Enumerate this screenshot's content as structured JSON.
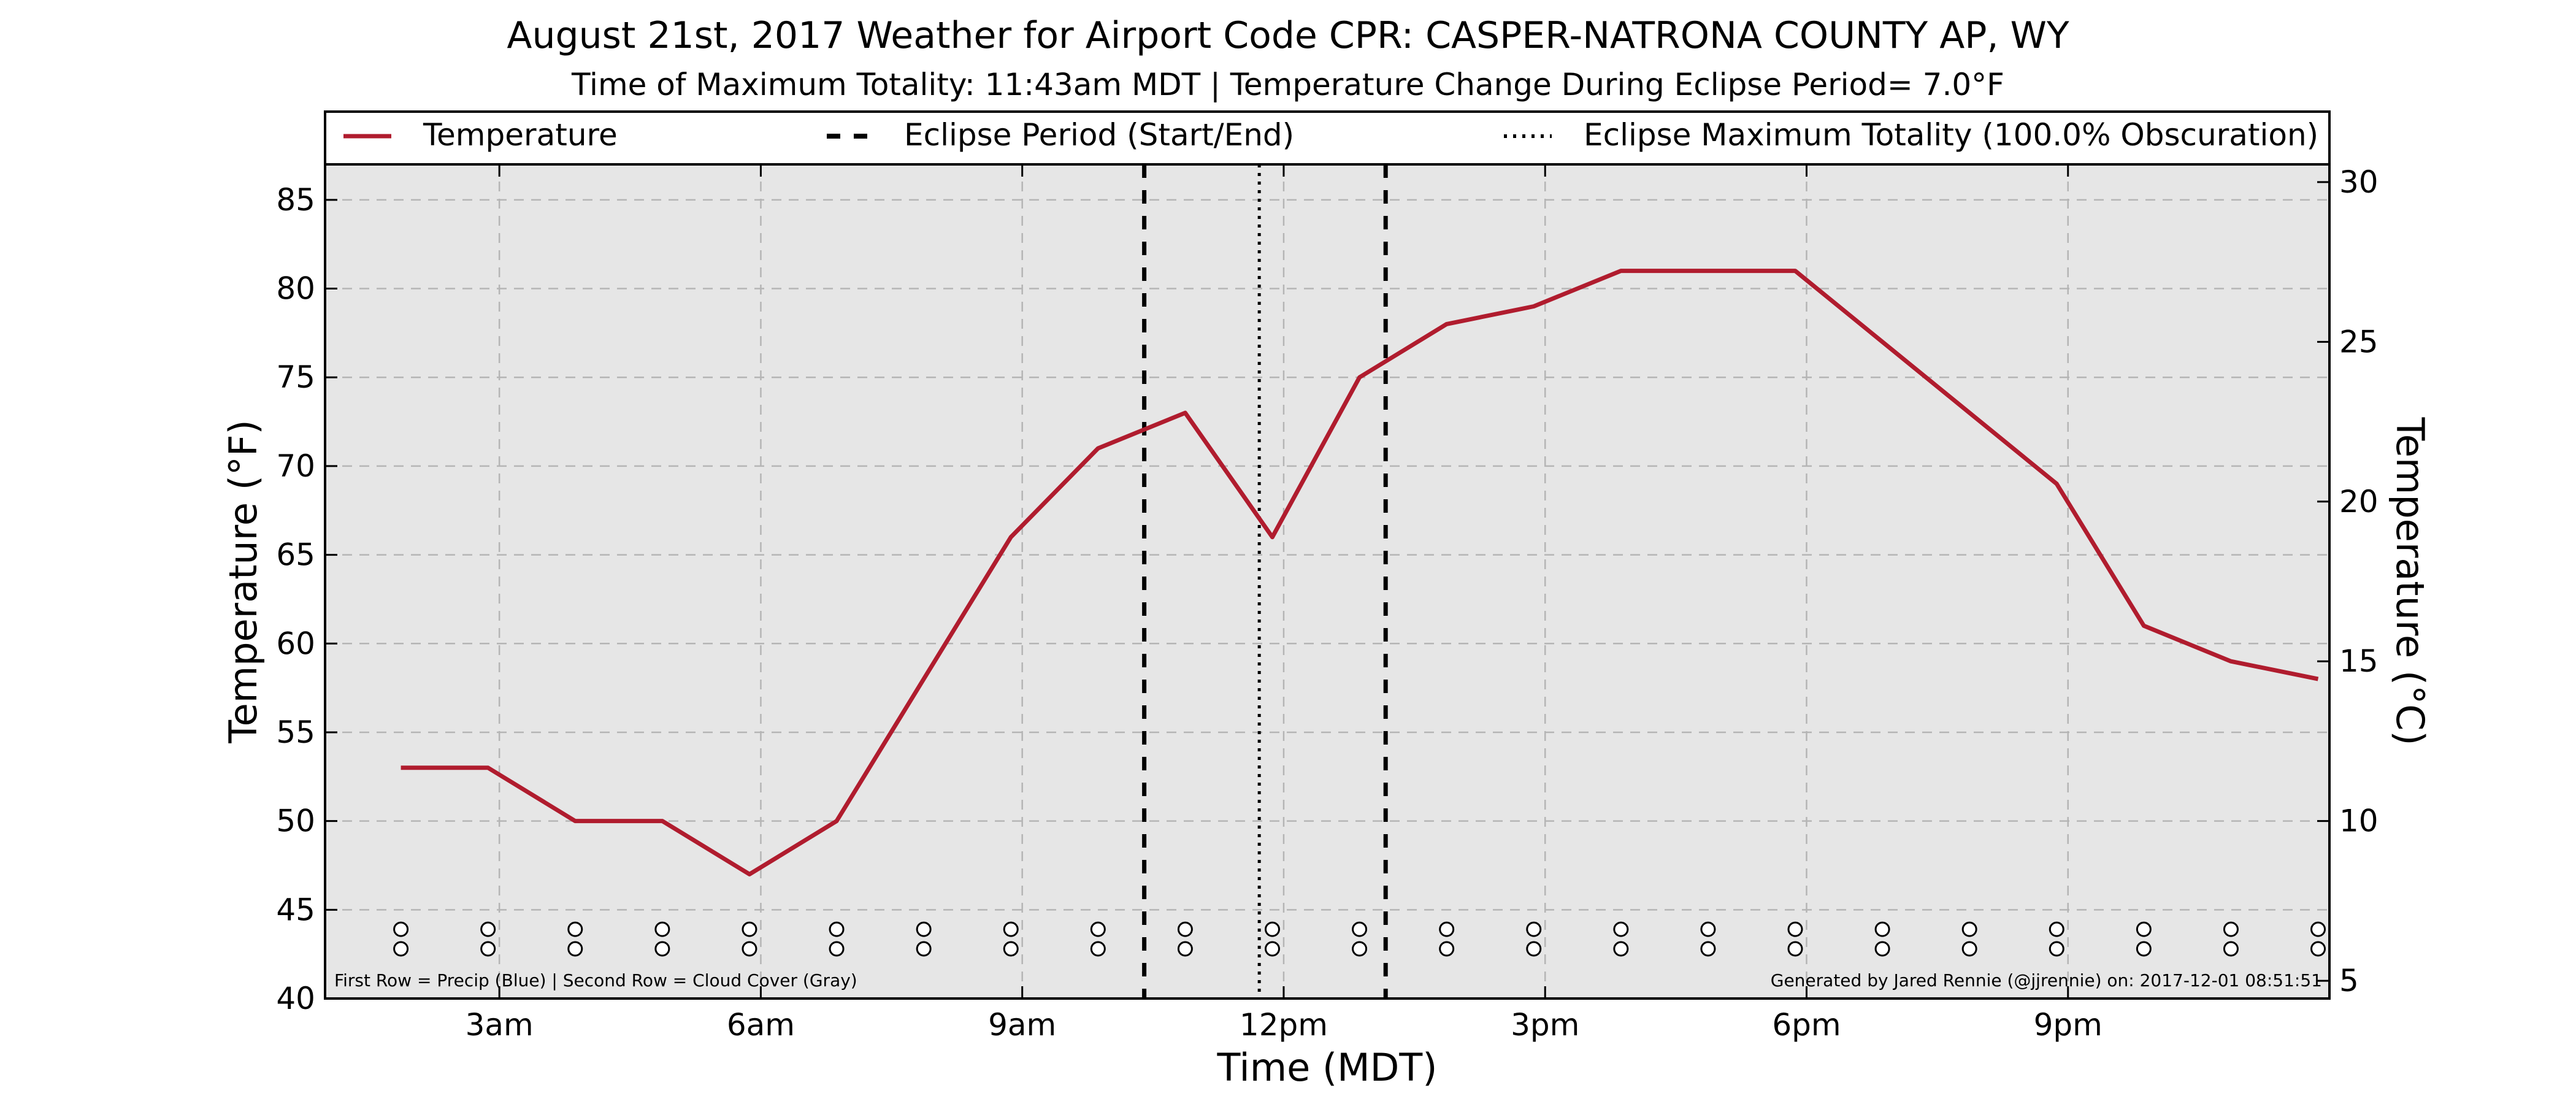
{
  "chart_data": {
    "type": "line",
    "title": "August 21st, 2017 Weather for Airport Code CPR: CASPER-NATRONA COUNTY AP, WY",
    "subtitle": "Time of Maximum Totality: 11:43am MDT | Temperature Change During Eclipse Period= 7.0°F",
    "xlabel": "Time (MDT)",
    "ylabel": "Temperature (°F)",
    "ylabel_right": "Temperature (°C)",
    "x_ticks": [
      "3am",
      "6am",
      "9am",
      "12pm",
      "3pm",
      "6pm",
      "9pm"
    ],
    "x_tick_hours": [
      3,
      6,
      9,
      12,
      15,
      18,
      21
    ],
    "xlim": [
      1,
      24
    ],
    "ylim": [
      40,
      87
    ],
    "y_ticks": [
      40,
      45,
      50,
      55,
      60,
      65,
      70,
      75,
      80,
      85
    ],
    "y2_ticks": [
      5,
      10,
      15,
      20,
      25,
      30
    ],
    "grid": true,
    "legend_position": "top",
    "legend": [
      {
        "label": "Temperature",
        "style": "solid"
      },
      {
        "label": "Eclipse Period (Start/End)",
        "style": "dashed"
      },
      {
        "label": "Eclipse Maximum Totality (100.0% Obscuration)",
        "style": "dotted"
      }
    ],
    "series": [
      {
        "name": "Temperature",
        "color": "#b01c2e",
        "x": [
          1.87,
          2.87,
          3.87,
          4.87,
          5.87,
          6.87,
          7.87,
          8.87,
          9.87,
          10.87,
          11.87,
          12.87,
          13.87,
          14.87,
          15.87,
          16.87,
          17.87,
          18.87,
          19.87,
          20.87,
          21.87,
          22.87,
          23.87
        ],
        "values": [
          53,
          53,
          50,
          50,
          47,
          50,
          58,
          66,
          71,
          73,
          66,
          75,
          78,
          79,
          81,
          81,
          81,
          77,
          73,
          69,
          61,
          59,
          58
        ]
      }
    ],
    "eclipse_start": 10.4,
    "eclipse_end": 13.17,
    "eclipse_max": 11.72,
    "marker_row_x": [
      1.87,
      2.87,
      3.87,
      4.87,
      5.87,
      6.87,
      7.87,
      8.87,
      9.87,
      10.87,
      11.87,
      12.87,
      13.87,
      14.87,
      15.87,
      16.87,
      17.87,
      18.87,
      19.87,
      20.87,
      21.87,
      22.87,
      23.87
    ],
    "annotation_left": "First Row = Precip (Blue) | Second Row = Cloud Cover (Gray)",
    "annotation_right": "Generated by Jared Rennie (@jjrennie) on: 2017-12-01 08:51:51",
    "colors": {
      "plot_background": "#e6e6e6",
      "temperature_line": "#b01c2e",
      "grid": "#b5b5b5"
    }
  }
}
